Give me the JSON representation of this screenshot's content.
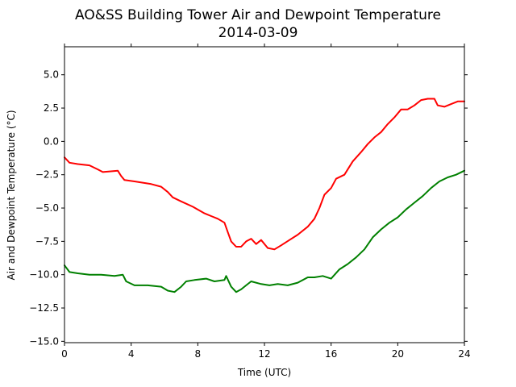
{
  "chart_data": {
    "type": "line",
    "title": "AO&SS Building Tower Air and Dewpoint Temperature",
    "subtitle": "2014-03-09",
    "xlabel": "Time (UTC)",
    "ylabel": "Air and Dewpoint Temperature (°C)",
    "xlim": [
      0,
      24
    ],
    "ylim": [
      -15.1,
      7.1
    ],
    "x_ticks": [
      0,
      4,
      8,
      12,
      16,
      20,
      24
    ],
    "y_ticks": [
      -15.0,
      -12.5,
      -10.0,
      -7.5,
      -5.0,
      -2.5,
      0.0,
      2.5,
      5.0
    ],
    "x_tick_labels": [
      "0",
      "4",
      "8",
      "12",
      "16",
      "20",
      "24"
    ],
    "y_tick_labels": [
      "−15.0",
      "−12.5",
      "−10.0",
      "−7.5",
      "−5.0",
      "−2.5",
      "0.0",
      "2.5",
      "5.0"
    ],
    "grid": false,
    "series": [
      {
        "color": "#ff0000",
        "x": [
          0,
          0.3,
          0.8,
          1.5,
          2.0,
          2.3,
          3.2,
          3.4,
          3.6,
          4.2,
          5.2,
          5.8,
          6.2,
          6.5,
          7.0,
          7.7,
          8.4,
          8.8,
          9.2,
          9.6,
          9.8,
          10.0,
          10.3,
          10.6,
          10.9,
          11.2,
          11.5,
          11.8,
          12.2,
          12.6,
          13.0,
          13.5,
          14.0,
          14.6,
          15.0,
          15.3,
          15.6,
          16.0,
          16.3,
          16.8,
          17.3,
          17.8,
          18.2,
          18.6,
          19.0,
          19.4,
          19.8,
          20.2,
          20.6,
          21.0,
          21.4,
          21.8,
          22.2,
          22.4,
          22.8,
          23.2,
          23.6,
          24.0
        ],
        "y": [
          -1.2,
          -1.6,
          -1.7,
          -1.8,
          -2.1,
          -2.3,
          -2.2,
          -2.6,
          -2.9,
          -3.0,
          -3.2,
          -3.4,
          -3.8,
          -4.2,
          -4.5,
          -4.9,
          -5.4,
          -5.6,
          -5.8,
          -6.1,
          -6.8,
          -7.5,
          -7.9,
          -7.9,
          -7.5,
          -7.3,
          -7.7,
          -7.4,
          -8.0,
          -8.1,
          -7.8,
          -7.4,
          -7.0,
          -6.4,
          -5.8,
          -5.0,
          -4.0,
          -3.5,
          -2.8,
          -2.5,
          -1.5,
          -0.8,
          -0.2,
          0.3,
          0.7,
          1.3,
          1.8,
          2.4,
          2.4,
          2.7,
          3.1,
          3.2,
          3.2,
          2.7,
          2.6,
          2.8,
          3.0,
          3.0
        ]
      },
      {
        "color": "#008000",
        "x": [
          0,
          0.3,
          0.8,
          1.5,
          2.2,
          3.0,
          3.5,
          3.7,
          4.2,
          5.0,
          5.8,
          6.2,
          6.6,
          7.0,
          7.3,
          7.8,
          8.5,
          9.0,
          9.6,
          9.7,
          10.0,
          10.3,
          10.6,
          10.9,
          11.2,
          11.8,
          12.3,
          12.8,
          13.4,
          14.0,
          14.6,
          15.0,
          15.5,
          16.0,
          16.5,
          17.0,
          17.5,
          18.0,
          18.5,
          19.0,
          19.5,
          20.0,
          20.5,
          21.0,
          21.5,
          22.0,
          22.5,
          23.0,
          23.5,
          24.0
        ],
        "y": [
          -9.3,
          -9.8,
          -9.9,
          -10.0,
          -10.0,
          -10.1,
          -10.0,
          -10.5,
          -10.8,
          -10.8,
          -10.9,
          -11.2,
          -11.3,
          -10.9,
          -10.5,
          -10.4,
          -10.3,
          -10.5,
          -10.4,
          -10.1,
          -10.9,
          -11.3,
          -11.1,
          -10.8,
          -10.5,
          -10.7,
          -10.8,
          -10.7,
          -10.8,
          -10.6,
          -10.2,
          -10.2,
          -10.1,
          -10.3,
          -9.6,
          -9.2,
          -8.7,
          -8.1,
          -7.2,
          -6.6,
          -6.1,
          -5.7,
          -5.1,
          -4.6,
          -4.1,
          -3.5,
          -3.0,
          -2.7,
          -2.5,
          -2.2
        ]
      }
    ]
  }
}
